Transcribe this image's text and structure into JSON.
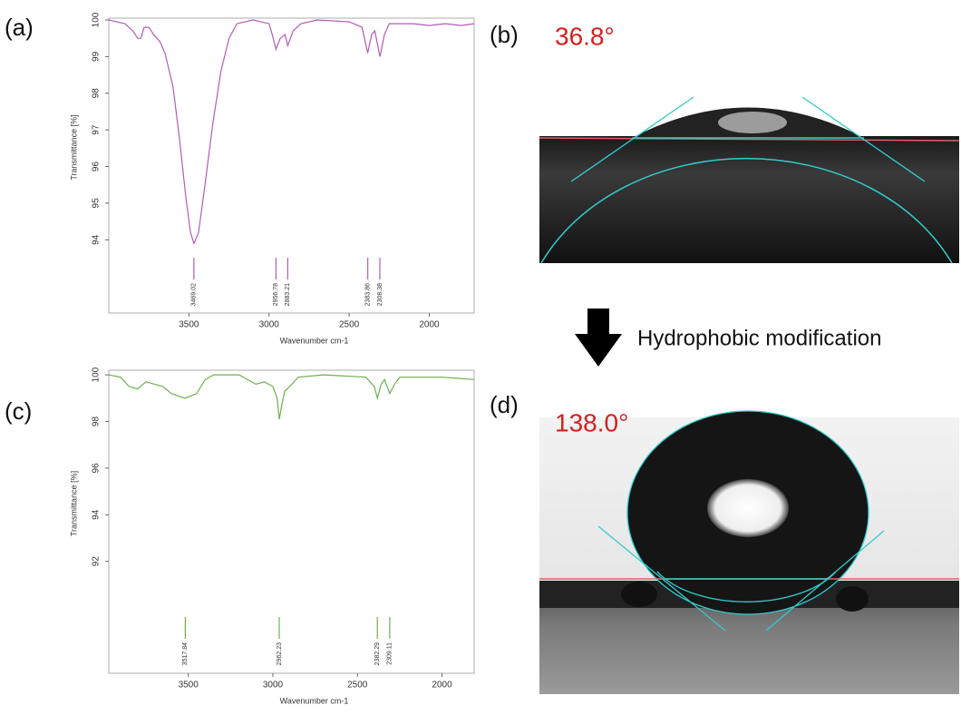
{
  "labels": {
    "a": "(a)",
    "b": "(b)",
    "c": "(c)",
    "d": "(d)",
    "angle_b": "36.8°",
    "angle_d": "138.0°",
    "arrow_text": "Hydrophobic modification"
  },
  "chart_data": [
    {
      "type": "line",
      "x_label": "Wavenumber cm-1",
      "y_label": "Transmittance [%]",
      "color": "#b25cb4",
      "x": [
        4000,
        3900,
        3850,
        3820,
        3800,
        3780,
        3750,
        3720,
        3680,
        3650,
        3600,
        3560,
        3520,
        3490,
        3469,
        3440,
        3400,
        3350,
        3300,
        3250,
        3200,
        3100,
        3000,
        2980,
        2957,
        2930,
        2900,
        2883,
        2850,
        2800,
        2700,
        2500,
        2420,
        2384,
        2360,
        2340,
        2308,
        2280,
        2250,
        2100,
        2000,
        1900,
        1800,
        1720
      ],
      "values": [
        100,
        99.9,
        99.7,
        99.5,
        99.5,
        99.8,
        99.8,
        99.6,
        99.4,
        99.1,
        98.2,
        96.8,
        95.2,
        94.2,
        93.9,
        94.2,
        95.5,
        97.2,
        98.6,
        99.5,
        99.9,
        100,
        99.9,
        99.6,
        99.2,
        99.5,
        99.6,
        99.3,
        99.7,
        99.9,
        100,
        99.95,
        99.8,
        99.1,
        99.6,
        99.7,
        99.0,
        99.6,
        99.9,
        99.9,
        99.85,
        99.9,
        99.85,
        99.9
      ],
      "peaks": [
        3469.02,
        2956.78,
        2883.21,
        2383.86,
        2308.38
      ],
      "xlim": [
        4000,
        1720
      ],
      "ylim": [
        92.0,
        100.05
      ],
      "xticks": [
        3500,
        3000,
        2500,
        2000
      ],
      "yticks": [
        94,
        95,
        96,
        97,
        98,
        99,
        100
      ]
    },
    {
      "type": "line",
      "x_label": "Wavenumber cm-1",
      "y_label": "Transmittance [%]",
      "color": "#6cb04e",
      "x": [
        3970,
        3900,
        3850,
        3800,
        3750,
        3700,
        3650,
        3600,
        3520,
        3450,
        3400,
        3350,
        3200,
        3100,
        3050,
        3000,
        2975,
        2962,
        2950,
        2930,
        2900,
        2850,
        2700,
        2450,
        2400,
        2382,
        2360,
        2340,
        2309,
        2280,
        2250,
        2000,
        1810
      ],
      "values": [
        100,
        99.9,
        99.5,
        99.4,
        99.7,
        99.6,
        99.5,
        99.2,
        99.0,
        99.2,
        99.8,
        100,
        100,
        99.6,
        99.7,
        99.5,
        99.0,
        98.1,
        98.6,
        99.3,
        99.5,
        99.9,
        100,
        99.9,
        99.5,
        99.0,
        99.6,
        99.8,
        99.2,
        99.6,
        99.9,
        99.9,
        99.8
      ],
      "peaks": [
        3517.84,
        2962.23,
        2382.29,
        2309.11
      ],
      "xlim": [
        3970,
        1810
      ],
      "ylim": [
        87.2,
        100.2
      ],
      "xticks": [
        3500,
        3000,
        2500,
        2000
      ],
      "yticks": [
        92,
        94,
        96,
        98,
        100
      ]
    }
  ]
}
